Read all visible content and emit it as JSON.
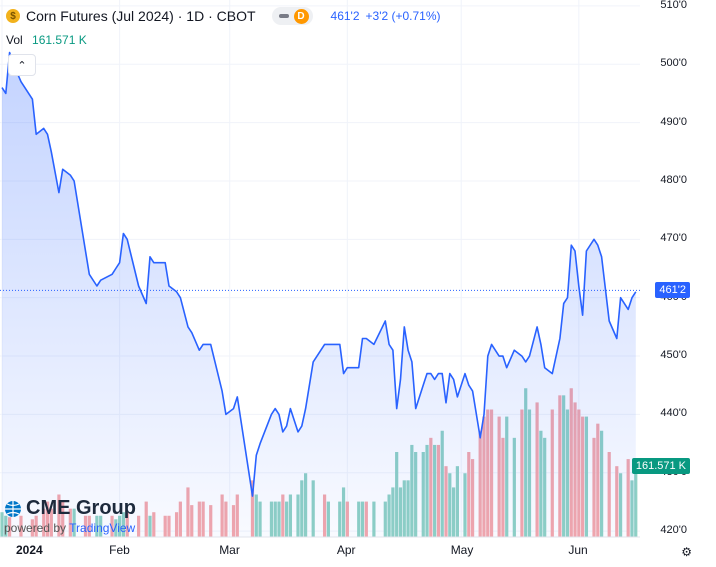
{
  "header": {
    "symbol_icon": "corn-coin-icon",
    "symbol_letter": "$",
    "title": "Corn Futures (Jul 2024) · 1D · CBOT",
    "delay_badge": "D",
    "last_price": "461'2",
    "change": "+3'2 (+0.71%)"
  },
  "volume": {
    "label": "Vol",
    "value": "161.571 K"
  },
  "last_price_tag": "461'2",
  "volume_tag": "161.571 K",
  "branding": {
    "logo": "CME Group",
    "powered_prefix": "powered by",
    "powered_brand": "TradingView"
  },
  "colors": {
    "line": "#2962ff",
    "up": "#089981",
    "down": "#f23645"
  },
  "chart_data": {
    "type": "line",
    "title": "Corn Futures (Jul 2024) · 1D · CBOT",
    "y_axis": {
      "range": [
        419,
        511
      ],
      "tick_values": [
        420,
        430,
        440,
        450,
        460,
        470,
        480,
        490,
        500,
        510
      ],
      "tick_labels": [
        "420'0",
        "430'0",
        "440'0",
        "450'0",
        "460'0",
        "470'0",
        "480'0",
        "490'0",
        "500'0",
        "510'0"
      ]
    },
    "x_axis": {
      "range_days": [
        0,
        151
      ],
      "tick_days": [
        0,
        31,
        60,
        91,
        121,
        152
      ],
      "tick_labels": [
        "2024",
        "Feb",
        "Mar",
        "Apr",
        "May",
        "Jun"
      ]
    },
    "last_price": 461.25,
    "price_series": [
      [
        0,
        496
      ],
      [
        1,
        495
      ],
      [
        2,
        502
      ],
      [
        3,
        500
      ],
      [
        5,
        497
      ],
      [
        8,
        494
      ],
      [
        9,
        488
      ],
      [
        11,
        489
      ],
      [
        12,
        488
      ],
      [
        13,
        485
      ],
      [
        15,
        478
      ],
      [
        16,
        482
      ],
      [
        18,
        481
      ],
      [
        19,
        480
      ],
      [
        22,
        468
      ],
      [
        23,
        464
      ],
      [
        25,
        462
      ],
      [
        26,
        463
      ],
      [
        29,
        464
      ],
      [
        30,
        465
      ],
      [
        31,
        466
      ],
      [
        32,
        471
      ],
      [
        33,
        470
      ],
      [
        36,
        462
      ],
      [
        38,
        459
      ],
      [
        39,
        467
      ],
      [
        40,
        466
      ],
      [
        43,
        466
      ],
      [
        44,
        462
      ],
      [
        46,
        461
      ],
      [
        47,
        460
      ],
      [
        49,
        455
      ],
      [
        50,
        454
      ],
      [
        52,
        451
      ],
      [
        53,
        452
      ],
      [
        55,
        452
      ],
      [
        58,
        444
      ],
      [
        59,
        440
      ],
      [
        61,
        441
      ],
      [
        62,
        443
      ],
      [
        66,
        426
      ],
      [
        67,
        433
      ],
      [
        68,
        435
      ],
      [
        71,
        440
      ],
      [
        72,
        441
      ],
      [
        73,
        440
      ],
      [
        74,
        437
      ],
      [
        75,
        438
      ],
      [
        76,
        441
      ],
      [
        78,
        437
      ],
      [
        79,
        438
      ],
      [
        80,
        441
      ],
      [
        82,
        449
      ],
      [
        85,
        452
      ],
      [
        86,
        452
      ],
      [
        89,
        452
      ],
      [
        90,
        447
      ],
      [
        91,
        448
      ],
      [
        94,
        448
      ],
      [
        95,
        453
      ],
      [
        96,
        453
      ],
      [
        98,
        452
      ],
      [
        101,
        456
      ],
      [
        102,
        452
      ],
      [
        103,
        451
      ],
      [
        104,
        441
      ],
      [
        105,
        446
      ],
      [
        106,
        455
      ],
      [
        107,
        451
      ],
      [
        108,
        449
      ],
      [
        109,
        441
      ],
      [
        111,
        445
      ],
      [
        112,
        447
      ],
      [
        113,
        447
      ],
      [
        114,
        446
      ],
      [
        115,
        447
      ],
      [
        116,
        447
      ],
      [
        117,
        442
      ],
      [
        118,
        447
      ],
      [
        119,
        446
      ],
      [
        120,
        443
      ],
      [
        122,
        447
      ],
      [
        123,
        445
      ],
      [
        124,
        444
      ],
      [
        126,
        436
      ],
      [
        127,
        440
      ],
      [
        128,
        450
      ],
      [
        129,
        452
      ],
      [
        131,
        450
      ],
      [
        132,
        450
      ],
      [
        133,
        448
      ],
      [
        135,
        451
      ],
      [
        137,
        450
      ],
      [
        138,
        449
      ],
      [
        139,
        450
      ],
      [
        141,
        455
      ],
      [
        142,
        452
      ],
      [
        143,
        448
      ],
      [
        145,
        447
      ],
      [
        147,
        453
      ],
      [
        148,
        459
      ],
      [
        149,
        460
      ],
      [
        150,
        469
      ],
      [
        151,
        468
      ],
      [
        152,
        462
      ],
      [
        153,
        457
      ],
      [
        154,
        468
      ],
      [
        156,
        470
      ],
      [
        157,
        469
      ],
      [
        158,
        467
      ],
      [
        160,
        456
      ],
      [
        162,
        453
      ],
      [
        163,
        460
      ],
      [
        165,
        458
      ],
      [
        166,
        460
      ],
      [
        167,
        461
      ]
    ],
    "volume_series": [
      [
        0,
        3.5,
        "up"
      ],
      [
        1,
        3,
        "up"
      ],
      [
        2,
        2.8,
        "down"
      ],
      [
        5,
        3,
        "down"
      ],
      [
        8,
        2.5,
        "down"
      ],
      [
        9,
        3,
        "down"
      ],
      [
        11,
        4,
        "down"
      ],
      [
        12,
        5,
        "down"
      ],
      [
        13,
        4,
        "down"
      ],
      [
        15,
        6,
        "down"
      ],
      [
        16,
        5,
        "down"
      ],
      [
        18,
        4,
        "down"
      ],
      [
        19,
        4,
        "up"
      ],
      [
        22,
        3,
        "down"
      ],
      [
        23,
        3,
        "down"
      ],
      [
        25,
        3,
        "up"
      ],
      [
        26,
        3,
        "up"
      ],
      [
        29,
        3,
        "down"
      ],
      [
        30,
        2.5,
        "up"
      ],
      [
        31,
        3,
        "up"
      ],
      [
        32,
        3.5,
        "up"
      ],
      [
        33,
        3.5,
        "down"
      ],
      [
        36,
        3,
        "down"
      ],
      [
        38,
        5,
        "down"
      ],
      [
        39,
        3,
        "up"
      ],
      [
        40,
        3.5,
        "down"
      ],
      [
        43,
        3,
        "down"
      ],
      [
        44,
        3,
        "down"
      ],
      [
        46,
        3.5,
        "down"
      ],
      [
        47,
        5,
        "down"
      ],
      [
        49,
        7,
        "down"
      ],
      [
        50,
        4.5,
        "down"
      ],
      [
        52,
        5,
        "down"
      ],
      [
        53,
        5,
        "down"
      ],
      [
        55,
        4.5,
        "down"
      ],
      [
        58,
        6,
        "down"
      ],
      [
        59,
        5,
        "down"
      ],
      [
        61,
        4.5,
        "down"
      ],
      [
        62,
        6,
        "down"
      ],
      [
        66,
        8,
        "down"
      ],
      [
        67,
        6,
        "up"
      ],
      [
        68,
        5,
        "up"
      ],
      [
        71,
        5,
        "up"
      ],
      [
        72,
        5,
        "up"
      ],
      [
        73,
        5,
        "up"
      ],
      [
        74,
        6,
        "down"
      ],
      [
        75,
        5,
        "up"
      ],
      [
        76,
        6,
        "up"
      ],
      [
        78,
        6,
        "up"
      ],
      [
        79,
        8,
        "up"
      ],
      [
        80,
        9,
        "up"
      ],
      [
        82,
        8,
        "up"
      ],
      [
        85,
        6,
        "down"
      ],
      [
        86,
        5,
        "up"
      ],
      [
        89,
        5,
        "up"
      ],
      [
        90,
        7,
        "up"
      ],
      [
        91,
        5,
        "down"
      ],
      [
        94,
        5,
        "up"
      ],
      [
        95,
        5,
        "up"
      ],
      [
        96,
        5,
        "down"
      ],
      [
        98,
        5,
        "up"
      ],
      [
        101,
        5,
        "up"
      ],
      [
        102,
        6,
        "up"
      ],
      [
        103,
        7,
        "up"
      ],
      [
        104,
        12,
        "up"
      ],
      [
        105,
        7,
        "up"
      ],
      [
        106,
        8,
        "up"
      ],
      [
        107,
        8,
        "up"
      ],
      [
        108,
        13,
        "up"
      ],
      [
        109,
        12,
        "up"
      ],
      [
        111,
        12,
        "up"
      ],
      [
        112,
        13,
        "up"
      ],
      [
        113,
        14,
        "down"
      ],
      [
        114,
        13,
        "up"
      ],
      [
        115,
        13,
        "down"
      ],
      [
        116,
        15,
        "up"
      ],
      [
        117,
        10,
        "down"
      ],
      [
        118,
        9,
        "up"
      ],
      [
        119,
        7,
        "up"
      ],
      [
        120,
        10,
        "up"
      ],
      [
        122,
        9,
        "up"
      ],
      [
        123,
        12,
        "down"
      ],
      [
        124,
        11,
        "down"
      ],
      [
        126,
        15,
        "down"
      ],
      [
        127,
        17,
        "down"
      ],
      [
        128,
        18,
        "down"
      ],
      [
        129,
        18,
        "down"
      ],
      [
        131,
        17,
        "down"
      ],
      [
        132,
        14,
        "down"
      ],
      [
        133,
        17,
        "up"
      ],
      [
        135,
        14,
        "up"
      ],
      [
        137,
        18,
        "down"
      ],
      [
        138,
        21,
        "up"
      ],
      [
        139,
        18,
        "up"
      ],
      [
        141,
        19,
        "down"
      ],
      [
        142,
        15,
        "up"
      ],
      [
        143,
        14,
        "up"
      ],
      [
        145,
        18,
        "down"
      ],
      [
        147,
        20,
        "down"
      ],
      [
        148,
        20,
        "up"
      ],
      [
        149,
        18,
        "up"
      ],
      [
        150,
        21,
        "down"
      ],
      [
        151,
        19,
        "down"
      ],
      [
        152,
        18,
        "down"
      ],
      [
        153,
        17,
        "down"
      ],
      [
        154,
        17,
        "up"
      ],
      [
        156,
        14,
        "down"
      ],
      [
        157,
        16,
        "down"
      ],
      [
        158,
        15,
        "up"
      ],
      [
        160,
        12,
        "down"
      ],
      [
        162,
        10,
        "down"
      ],
      [
        163,
        9,
        "up"
      ],
      [
        165,
        11,
        "down"
      ],
      [
        166,
        8,
        "up"
      ],
      [
        167,
        11,
        "up"
      ]
    ]
  }
}
